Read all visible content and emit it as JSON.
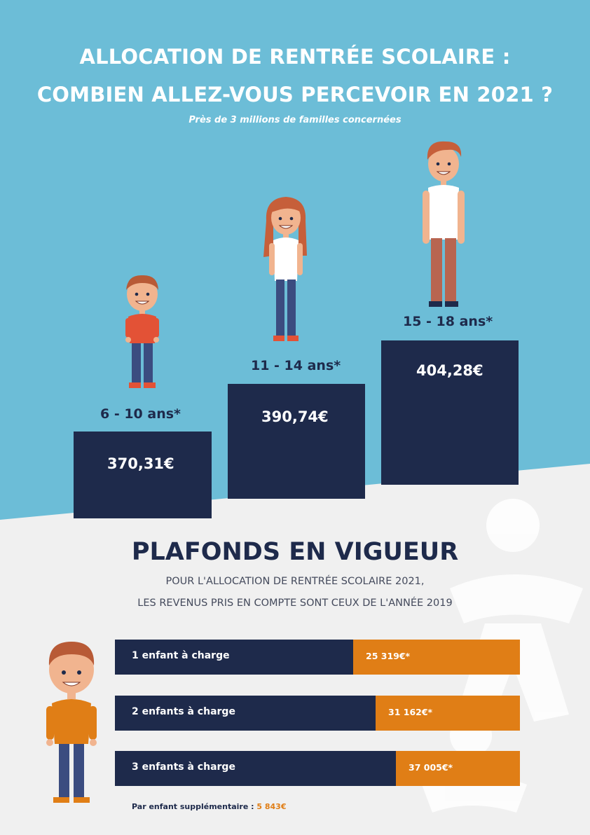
{
  "header": {
    "title_line1": "ALLOCATION DE RENTRÉE SCOLAIRE :",
    "title_line2": "COMBIEN ALLEZ-VOUS PERCEVOIR EN 2021 ?",
    "subtitle": "Près de 3 millions de familles concernées"
  },
  "age_groups": [
    {
      "age": "6 - 10 ans*",
      "amount": "370,31€",
      "value": 370.31
    },
    {
      "age": "11 - 14 ans*",
      "amount": "390,74€",
      "value": 390.74
    },
    {
      "age": "15 - 18 ans*",
      "amount": "404,28€",
      "value": 404.28
    }
  ],
  "plafonds": {
    "title": "PLAFONDS EN VIGUEUR",
    "desc_line1": "POUR L'ALLOCATION DE RENTRÉE SCOLAIRE 2021,",
    "desc_line2": "LES REVENUS PRIS EN COMPTE SONT CEUX DE L'ANNÉE 2019",
    "rows": [
      {
        "label": "1 enfant à charge",
        "value": "25 319€*",
        "amount": 25319
      },
      {
        "label": "2 enfants à charge",
        "value": "31 162€*",
        "amount": 31162
      },
      {
        "label": "3 enfants à charge",
        "value": "37 005€*",
        "amount": 37005
      }
    ],
    "extra_label": "Par enfant supplémentaire : ",
    "extra_value": "5 843€"
  },
  "colors": {
    "sky": "#6cbdd7",
    "navy": "#1e2a4b",
    "orange": "#e07e16",
    "light_bg": "#f0f0f0"
  }
}
